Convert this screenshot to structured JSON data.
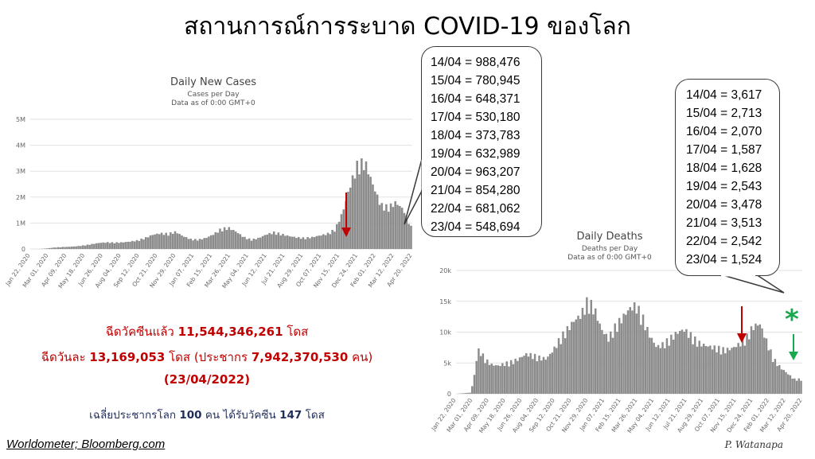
{
  "title": "สถานการณ์การระบาด COVID-19 ของโลก",
  "chart_data": [
    {
      "type": "bar",
      "title": "Daily New Cases",
      "subtitle": "Cases per Day",
      "subtitle2": "Data as of 0:00 GMT+0",
      "yticks": [
        "0",
        "1M",
        "2M",
        "3M",
        "4M",
        "5M"
      ],
      "ylim": [
        0,
        5000000
      ],
      "xticks": [
        "Jan 22, 2020",
        "Mar 01, 2020",
        "Apr 09, 2020",
        "May 18, 2020",
        "Jun 26, 2020",
        "Aug 04, 2020",
        "Sep 12, 2020",
        "Oct 21, 2020",
        "Nov 29, 2020",
        "Jan 07, 2021",
        "Feb 15, 2021",
        "Mar 26, 2021",
        "May 04, 2021",
        "Jun 12, 2021",
        "Jul 21, 2021",
        "Aug 29, 2021",
        "Oct 07, 2021",
        "Nov 15, 2021",
        "Dec 24, 2021",
        "Feb 01, 2022",
        "Mar 12, 2022",
        "Apr 20, 2022"
      ],
      "grid": true,
      "points": [
        [
          0,
          0
        ],
        [
          2,
          0
        ],
        [
          4,
          20000
        ],
        [
          6,
          60000
        ],
        [
          8,
          80000
        ],
        [
          10,
          90000
        ],
        [
          12,
          110000
        ],
        [
          14,
          150000
        ],
        [
          16,
          200000
        ],
        [
          18,
          250000
        ],
        [
          20,
          270000
        ],
        [
          22,
          260000
        ],
        [
          24,
          270000
        ],
        [
          26,
          300000
        ],
        [
          28,
          350000
        ],
        [
          30,
          450000
        ],
        [
          32,
          580000
        ],
        [
          34,
          640000
        ],
        [
          36,
          620000
        ],
        [
          38,
          700000
        ],
        [
          40,
          520000
        ],
        [
          42,
          400000
        ],
        [
          44,
          380000
        ],
        [
          46,
          450000
        ],
        [
          48,
          600000
        ],
        [
          50,
          820000
        ],
        [
          52,
          860000
        ],
        [
          54,
          700000
        ],
        [
          56,
          480000
        ],
        [
          58,
          380000
        ],
        [
          60,
          450000
        ],
        [
          62,
          600000
        ],
        [
          64,
          680000
        ],
        [
          66,
          600000
        ],
        [
          68,
          520000
        ],
        [
          70,
          470000
        ],
        [
          72,
          450000
        ],
        [
          74,
          480000
        ],
        [
          76,
          550000
        ],
        [
          78,
          620000
        ],
        [
          80,
          800000
        ],
        [
          82,
          1500000
        ],
        [
          84,
          2600000
        ],
        [
          86,
          3500000
        ],
        [
          88,
          3500000
        ],
        [
          90,
          2600000
        ],
        [
          92,
          1800000
        ],
        [
          94,
          1700000
        ],
        [
          96,
          1900000
        ],
        [
          98,
          1600000
        ],
        [
          100,
          900000
        ]
      ],
      "annotation": "red down arrow"
    },
    {
      "type": "bar",
      "title": "Daily Deaths",
      "subtitle": "Deaths per Day",
      "subtitle2": "Data as of 0:00 GMT+0",
      "yticks": [
        "0",
        "5k",
        "10k",
        "15k",
        "20k"
      ],
      "ylim": [
        0,
        20000
      ],
      "xticks": [
        "Jan 22, 2020",
        "Mar 01, 2020",
        "Apr 09, 2020",
        "May 18, 2020",
        "Jun 26, 2020",
        "Aug 04, 2020",
        "Sep 12, 2020",
        "Oct 21, 2020",
        "Nov 29, 2020",
        "Jan 07, 2021",
        "Feb 15, 2021",
        "Mar 26, 2021",
        "May 04, 2021",
        "Jun 12, 2021",
        "Jul 21, 2021",
        "Aug 29, 2021",
        "Oct 07, 2021",
        "Nov 15, 2021",
        "Dec 24, 2021",
        "Feb 01, 2022",
        "Mar 12, 2022",
        "Apr 20, 2022"
      ],
      "grid": true,
      "points": [
        [
          0,
          0
        ],
        [
          4,
          200
        ],
        [
          5,
          3000
        ],
        [
          6,
          7500
        ],
        [
          7,
          7200
        ],
        [
          8,
          6000
        ],
        [
          10,
          5000
        ],
        [
          12,
          4800
        ],
        [
          14,
          5200
        ],
        [
          16,
          5500
        ],
        [
          18,
          6000
        ],
        [
          20,
          6800
        ],
        [
          22,
          6600
        ],
        [
          24,
          6200
        ],
        [
          26,
          6000
        ],
        [
          28,
          7500
        ],
        [
          30,
          9500
        ],
        [
          32,
          11000
        ],
        [
          34,
          12500
        ],
        [
          36,
          13500
        ],
        [
          38,
          16000
        ],
        [
          40,
          14500
        ],
        [
          42,
          11000
        ],
        [
          44,
          9500
        ],
        [
          46,
          11500
        ],
        [
          48,
          13000
        ],
        [
          50,
          14500
        ],
        [
          52,
          15200
        ],
        [
          54,
          13000
        ],
        [
          56,
          10000
        ],
        [
          58,
          8000
        ],
        [
          60,
          8500
        ],
        [
          62,
          9500
        ],
        [
          64,
          10500
        ],
        [
          66,
          11000
        ],
        [
          68,
          10000
        ],
        [
          70,
          8800
        ],
        [
          72,
          8300
        ],
        [
          74,
          8000
        ],
        [
          76,
          7800
        ],
        [
          78,
          7500
        ],
        [
          80,
          7800
        ],
        [
          82,
          8500
        ],
        [
          84,
          9500
        ],
        [
          86,
          11500
        ],
        [
          88,
          12000
        ],
        [
          90,
          9000
        ],
        [
          92,
          6000
        ],
        [
          94,
          4500
        ],
        [
          96,
          3500
        ],
        [
          98,
          2500
        ]
      ],
      "annotation": "red down arrow; green down arrow with asterisk"
    }
  ],
  "cases_callout": [
    "14/04 = 988,476",
    "15/04 = 780,945",
    "16/04 = 648,371",
    "17/04 = 530,180",
    "18/04 = 373,783",
    "19/04 = 632,989",
    "20/04 = 963,207",
    "21/04 = 854,280",
    "22/04 = 681,062",
    "23/04 = 548,694"
  ],
  "deaths_callout": [
    "14/04 = 3,617",
    "15/04 = 2,713",
    "16/04 = 2,070",
    "17/04 = 1,587",
    "18/04 = 1,628",
    "19/04 = 2,543",
    "20/04 = 3,478",
    "21/04 = 3,513",
    "22/04 = 2,542",
    "23/04 = 1,524"
  ],
  "stats": {
    "line1_a": "ฉีดวัคซีนแล้ว",
    "line1_b": "11,544,346,261",
    "line1_c": "โดส",
    "line2_a": "ฉีดวันละ",
    "line2_b": "13,169,053",
    "line2_c": "โดส (ประชากร",
    "line2_d": "7,942,370,530",
    "line2_e": "คน)",
    "line3": "(23/04/2022)",
    "line4_a": "เฉลี่ยประชากรโลก",
    "line4_b": "100",
    "line4_c": "คน ได้รับวัคซีน",
    "line4_d": "147",
    "line4_e": "โดส"
  },
  "source": "Worldometer;  Bloomberg.com",
  "signature": "P. Watanapa",
  "star": "*",
  "colors": {
    "bars": "#8c8c8c",
    "red": "#c00000",
    "green": "#1aa84e",
    "navy": "#1f2d5a"
  }
}
